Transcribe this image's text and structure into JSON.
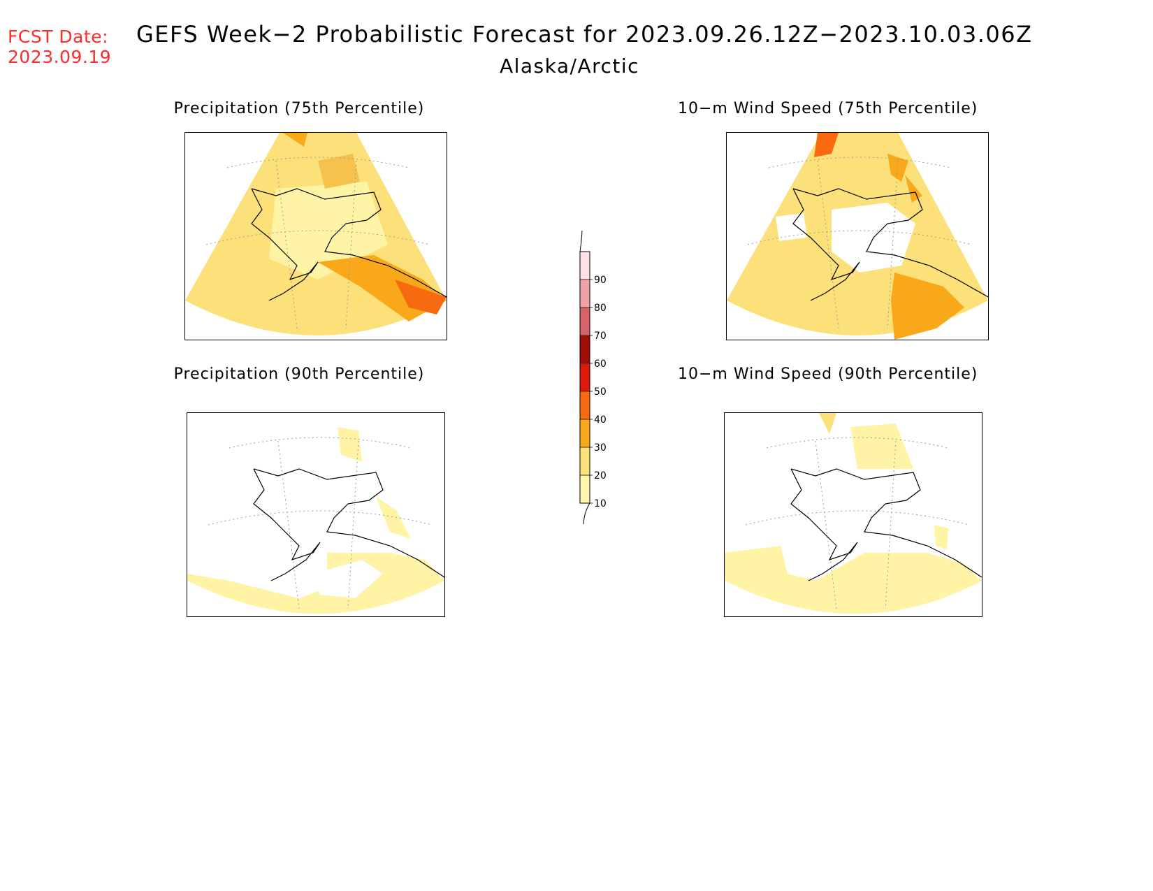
{
  "header": {
    "fcst_label": "FCST Date:",
    "fcst_date": "2023.09.19",
    "title": "GEFS Week−2 Probabilistic Forecast for 2023.09.26.12Z−2023.10.03.06Z",
    "region": "Alaska/Arctic"
  },
  "panels": [
    {
      "title": "Precipitation (75th Percentile)"
    },
    {
      "title": "10−m Wind Speed (75th Percentile)"
    },
    {
      "title": "Precipitation (90th Percentile)"
    },
    {
      "title": "10−m Wind Speed (90th Percentile)"
    }
  ],
  "colorbar": {
    "levels": [
      "10",
      "20",
      "30",
      "40",
      "50",
      "60",
      "70",
      "80",
      "90"
    ],
    "colors": [
      "#fff7b0",
      "#fce07a",
      "#f9a81a",
      "#f86a10",
      "#e01a0a",
      "#a00c06",
      "#d7626a",
      "#f0a3a7",
      "#fde1e4"
    ]
  }
}
